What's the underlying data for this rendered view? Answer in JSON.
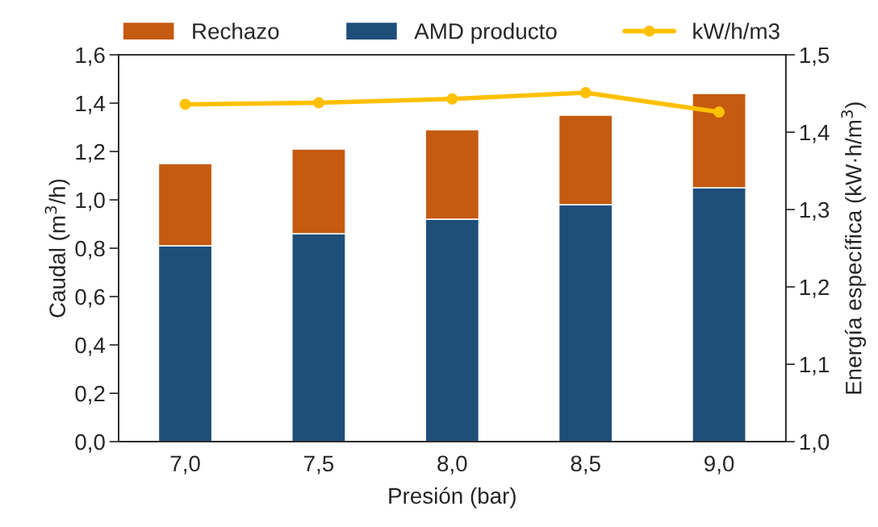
{
  "chart_data": {
    "type": "bar",
    "stacked": true,
    "xlabel": "Presión (bar)",
    "ylabel": "Caudal (m$^{3}$/h)",
    "y2label": "Energía específica (kW·h/m$^{3}$)",
    "categories": [
      "7,0",
      "7,5",
      "8,0",
      "8,5",
      "9,0"
    ],
    "series": [
      {
        "name": "AMD producto",
        "color": "#1f4e79",
        "values": [
          0.81,
          0.86,
          0.92,
          0.98,
          1.05
        ]
      },
      {
        "name": "Rechazo",
        "color": "#c55a11",
        "values": [
          0.34,
          0.35,
          0.37,
          0.37,
          0.39
        ]
      },
      {
        "name": "kW/h/m3",
        "type": "line",
        "axis": "y2",
        "color": "#ffc000",
        "marker": "circle",
        "values": [
          1.436,
          1.438,
          1.443,
          1.451,
          1.426
        ]
      }
    ],
    "ylim": [
      0,
      1.6
    ],
    "yticks": [
      {
        "value": 0,
        "label": "0,0"
      },
      {
        "value": 0.2,
        "label": "0,2"
      },
      {
        "value": 0.4,
        "label": "0,4"
      },
      {
        "value": 0.6,
        "label": "0,6"
      },
      {
        "value": 0.8,
        "label": "0,8"
      },
      {
        "value": 1.0,
        "label": "1,0"
      },
      {
        "value": 1.2,
        "label": "1,2"
      },
      {
        "value": 1.4,
        "label": "1,4"
      },
      {
        "value": 1.6,
        "label": "1,6"
      }
    ],
    "y2lim": [
      1.0,
      1.5
    ],
    "y2ticks": [
      {
        "value": 1.0,
        "label": "1,0"
      },
      {
        "value": 1.1,
        "label": "1,1"
      },
      {
        "value": 1.2,
        "label": "1,2"
      },
      {
        "value": 1.3,
        "label": "1,3"
      },
      {
        "value": 1.4,
        "label": "1,4"
      },
      {
        "value": 1.5,
        "label": "1,5"
      }
    ],
    "legend": "top",
    "grid": false
  }
}
